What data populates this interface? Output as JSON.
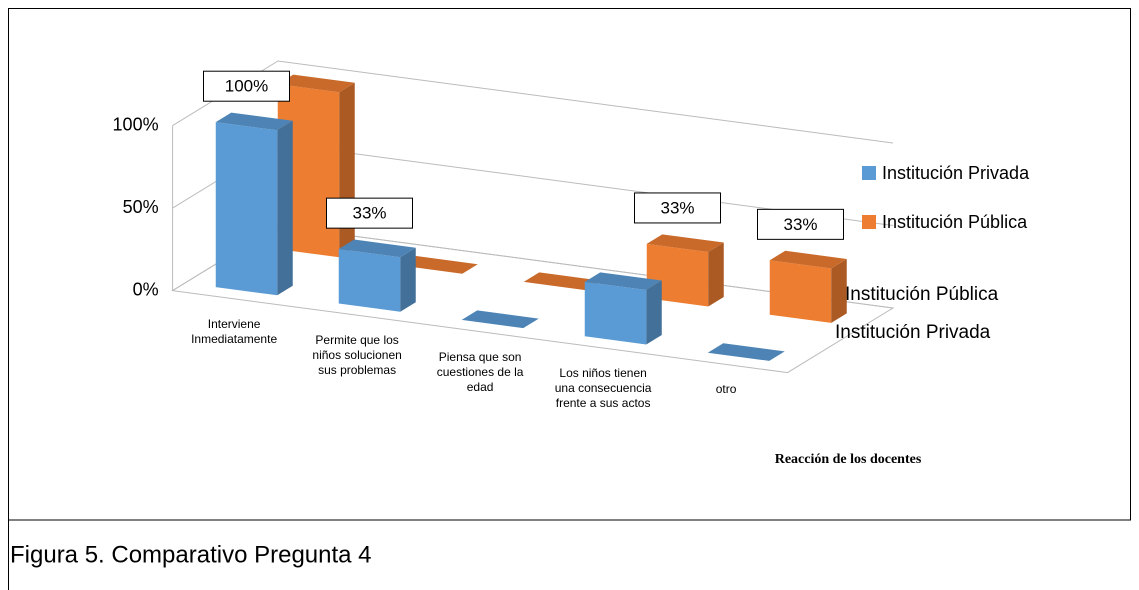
{
  "chart_data": {
    "type": "bar3d",
    "caption": "Figura 5. Comparativo Pregunta 4",
    "x_label": "Reacción de los docentes",
    "categories": [
      "Interviene Inmediatamente",
      "Permite que los niños solucionen sus problemas",
      "Piensa que son cuestiones de la edad",
      "Los niños tienen una consecuencia frente a sus actos",
      "otro"
    ],
    "series": [
      {
        "name": "Institución Privada",
        "color": "#5b9bd5",
        "values": [
          100,
          33,
          0,
          33,
          0
        ],
        "value_labels": [
          "100%",
          "33%",
          null,
          null,
          null
        ]
      },
      {
        "name": "Institución Pública",
        "color": "#ed7d31",
        "values": [
          100,
          0,
          0,
          33,
          33
        ],
        "value_labels": [
          null,
          null,
          null,
          "33%",
          "33%"
        ]
      }
    ],
    "ylim": [
      0,
      100
    ],
    "yticks": [
      {
        "value": 0,
        "label": "0%"
      },
      {
        "value": 50,
        "label": "50%"
      },
      {
        "value": 100,
        "label": "100%"
      }
    ],
    "grid": true,
    "legend": "right"
  }
}
